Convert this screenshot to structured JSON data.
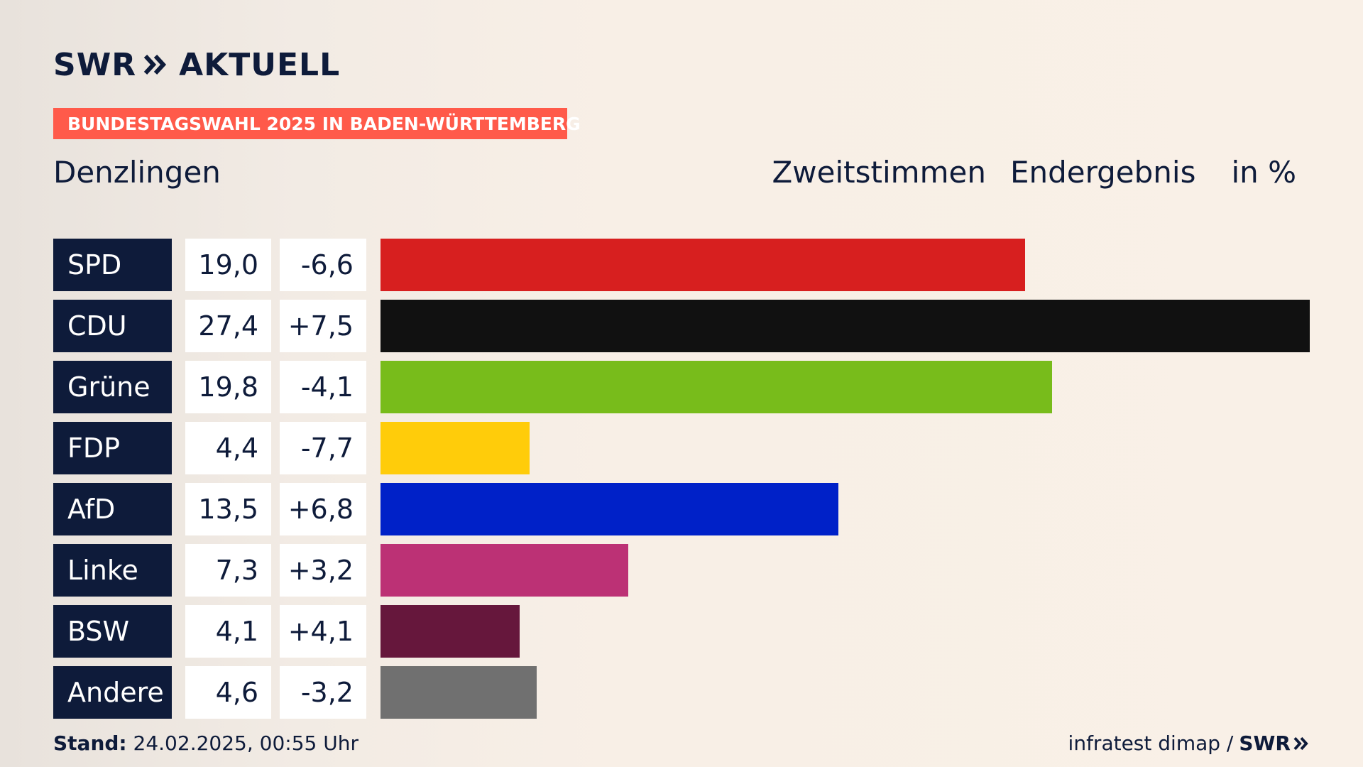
{
  "header": {
    "brand_left": "SWR",
    "brand_right": "AKTUELL",
    "banner": "BUNDESTAGSWAHL 2025 IN BADEN-WÜRTTEMBERG",
    "place": "Denzlingen",
    "vote_type": "Zweitstimmen",
    "result_type": "Endergebnis",
    "unit": "in %"
  },
  "footer": {
    "stand_label": "Stand:",
    "stand_value": "24.02.2025, 00:55 Uhr",
    "source": "infratest dimap /",
    "source_brand": "SWR"
  },
  "chart_data": {
    "type": "bar",
    "orientation": "horizontal",
    "categories": [
      "SPD",
      "CDU",
      "Grüne",
      "FDP",
      "AfD",
      "Linke",
      "BSW",
      "Andere"
    ],
    "values": [
      19.0,
      27.4,
      19.8,
      4.4,
      13.5,
      7.3,
      4.1,
      4.6
    ],
    "value_labels": [
      "19,0",
      "27,4",
      "19,8",
      "4,4",
      "13,5",
      "7,3",
      "4,1",
      "4,6"
    ],
    "diff_labels": [
      "-6,6",
      "+7,5",
      "-4,1",
      "-7,7",
      "+6,8",
      "+3,2",
      "+4,1",
      "-3,2"
    ],
    "diffs": [
      -6.6,
      7.5,
      -4.1,
      -7.7,
      6.8,
      3.2,
      4.1,
      -3.2
    ],
    "colors": [
      "#d71f1f",
      "#111111",
      "#78bc1b",
      "#ffcc0a",
      "#0021c8",
      "#bc3175",
      "#66173c",
      "#707070"
    ],
    "xlim": [
      0,
      27.4
    ],
    "grid": false,
    "title": "",
    "xlabel": "",
    "ylabel": ""
  }
}
